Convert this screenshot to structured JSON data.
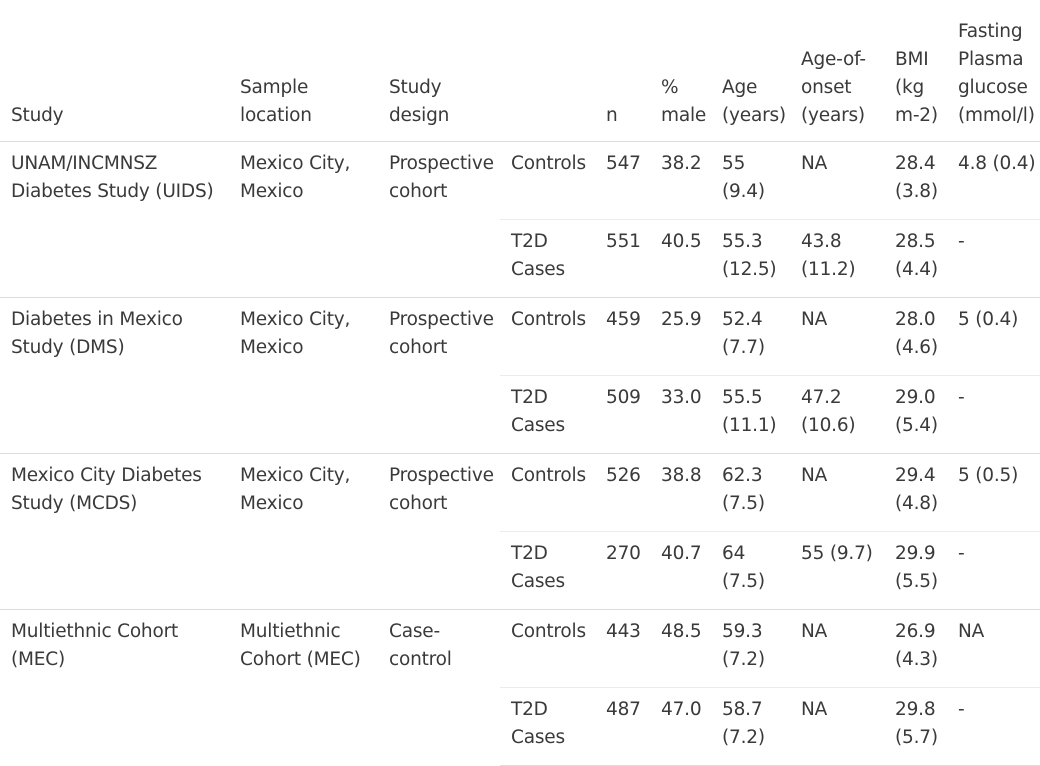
{
  "headers": {
    "study": "Study",
    "sample_location": "Sample location",
    "study_design": "Study design",
    "group": "",
    "n": "n",
    "pct_male": "% male",
    "age": "Age (years)",
    "age_onset": "Age-of-onset (years)",
    "bmi": "BMI (kg m-2)",
    "fpg": "Fasting Plasma glucose (mmol/l)"
  },
  "studies": [
    {
      "study": "UNAM/INCMNSZ Diabetes Study (UIDS)",
      "location": "Mexico City, Mexico",
      "design": "Prospective cohort",
      "rows": [
        {
          "group": "Controls",
          "n": "547",
          "male": "38.2",
          "age": "55 (9.4)",
          "onset": "NA",
          "bmi": "28.4 (3.8)",
          "fpg": "4.8 (0.4)"
        },
        {
          "group": "T2D Cases",
          "n": "551",
          "male": "40.5",
          "age": "55.3 (12.5)",
          "onset": "43.8 (11.2)",
          "bmi": "28.5 (4.4)",
          "fpg": "-"
        }
      ]
    },
    {
      "study": "Diabetes in Mexico Study (DMS)",
      "location": "Mexico City, Mexico",
      "design": "Prospective cohort",
      "rows": [
        {
          "group": "Controls",
          "n": "459",
          "male": "25.9",
          "age": "52.4 (7.7)",
          "onset": "NA",
          "bmi": "28.0 (4.6)",
          "fpg": "5 (0.4)"
        },
        {
          "group": "T2D Cases",
          "n": "509",
          "male": "33.0",
          "age": "55.5 (11.1)",
          "onset": "47.2 (10.6)",
          "bmi": "29.0 (5.4)",
          "fpg": "-"
        }
      ]
    },
    {
      "study": "Mexico City Diabetes Study (MCDS)",
      "location": "Mexico City, Mexico",
      "design": "Prospective cohort",
      "rows": [
        {
          "group": "Controls",
          "n": "526",
          "male": "38.8",
          "age": "62.3 (7.5)",
          "onset": "NA",
          "bmi": "29.4 (4.8)",
          "fpg": "5 (0.5)"
        },
        {
          "group": "T2D Cases",
          "n": "270",
          "male": "40.7",
          "age": "64 (7.5)",
          "onset": "55 (9.7)",
          "bmi": "29.9 (5.5)",
          "fpg": "-"
        }
      ]
    },
    {
      "study": "Multiethnic Cohort (MEC)",
      "location": "Multiethnic Cohort (MEC)",
      "design": "Case-control",
      "rows": [
        {
          "group": "Controls",
          "n": "443",
          "male": "48.5",
          "age": "59.3 (7.2)",
          "onset": "NA",
          "bmi": "26.9 (4.3)",
          "fpg": "NA"
        },
        {
          "group": "T2D Cases",
          "n": "487",
          "male": "47.0",
          "age": "58.7 (7.2)",
          "onset": "NA",
          "bmi": "29.8 (5.7)",
          "fpg": "-"
        }
      ]
    }
  ]
}
